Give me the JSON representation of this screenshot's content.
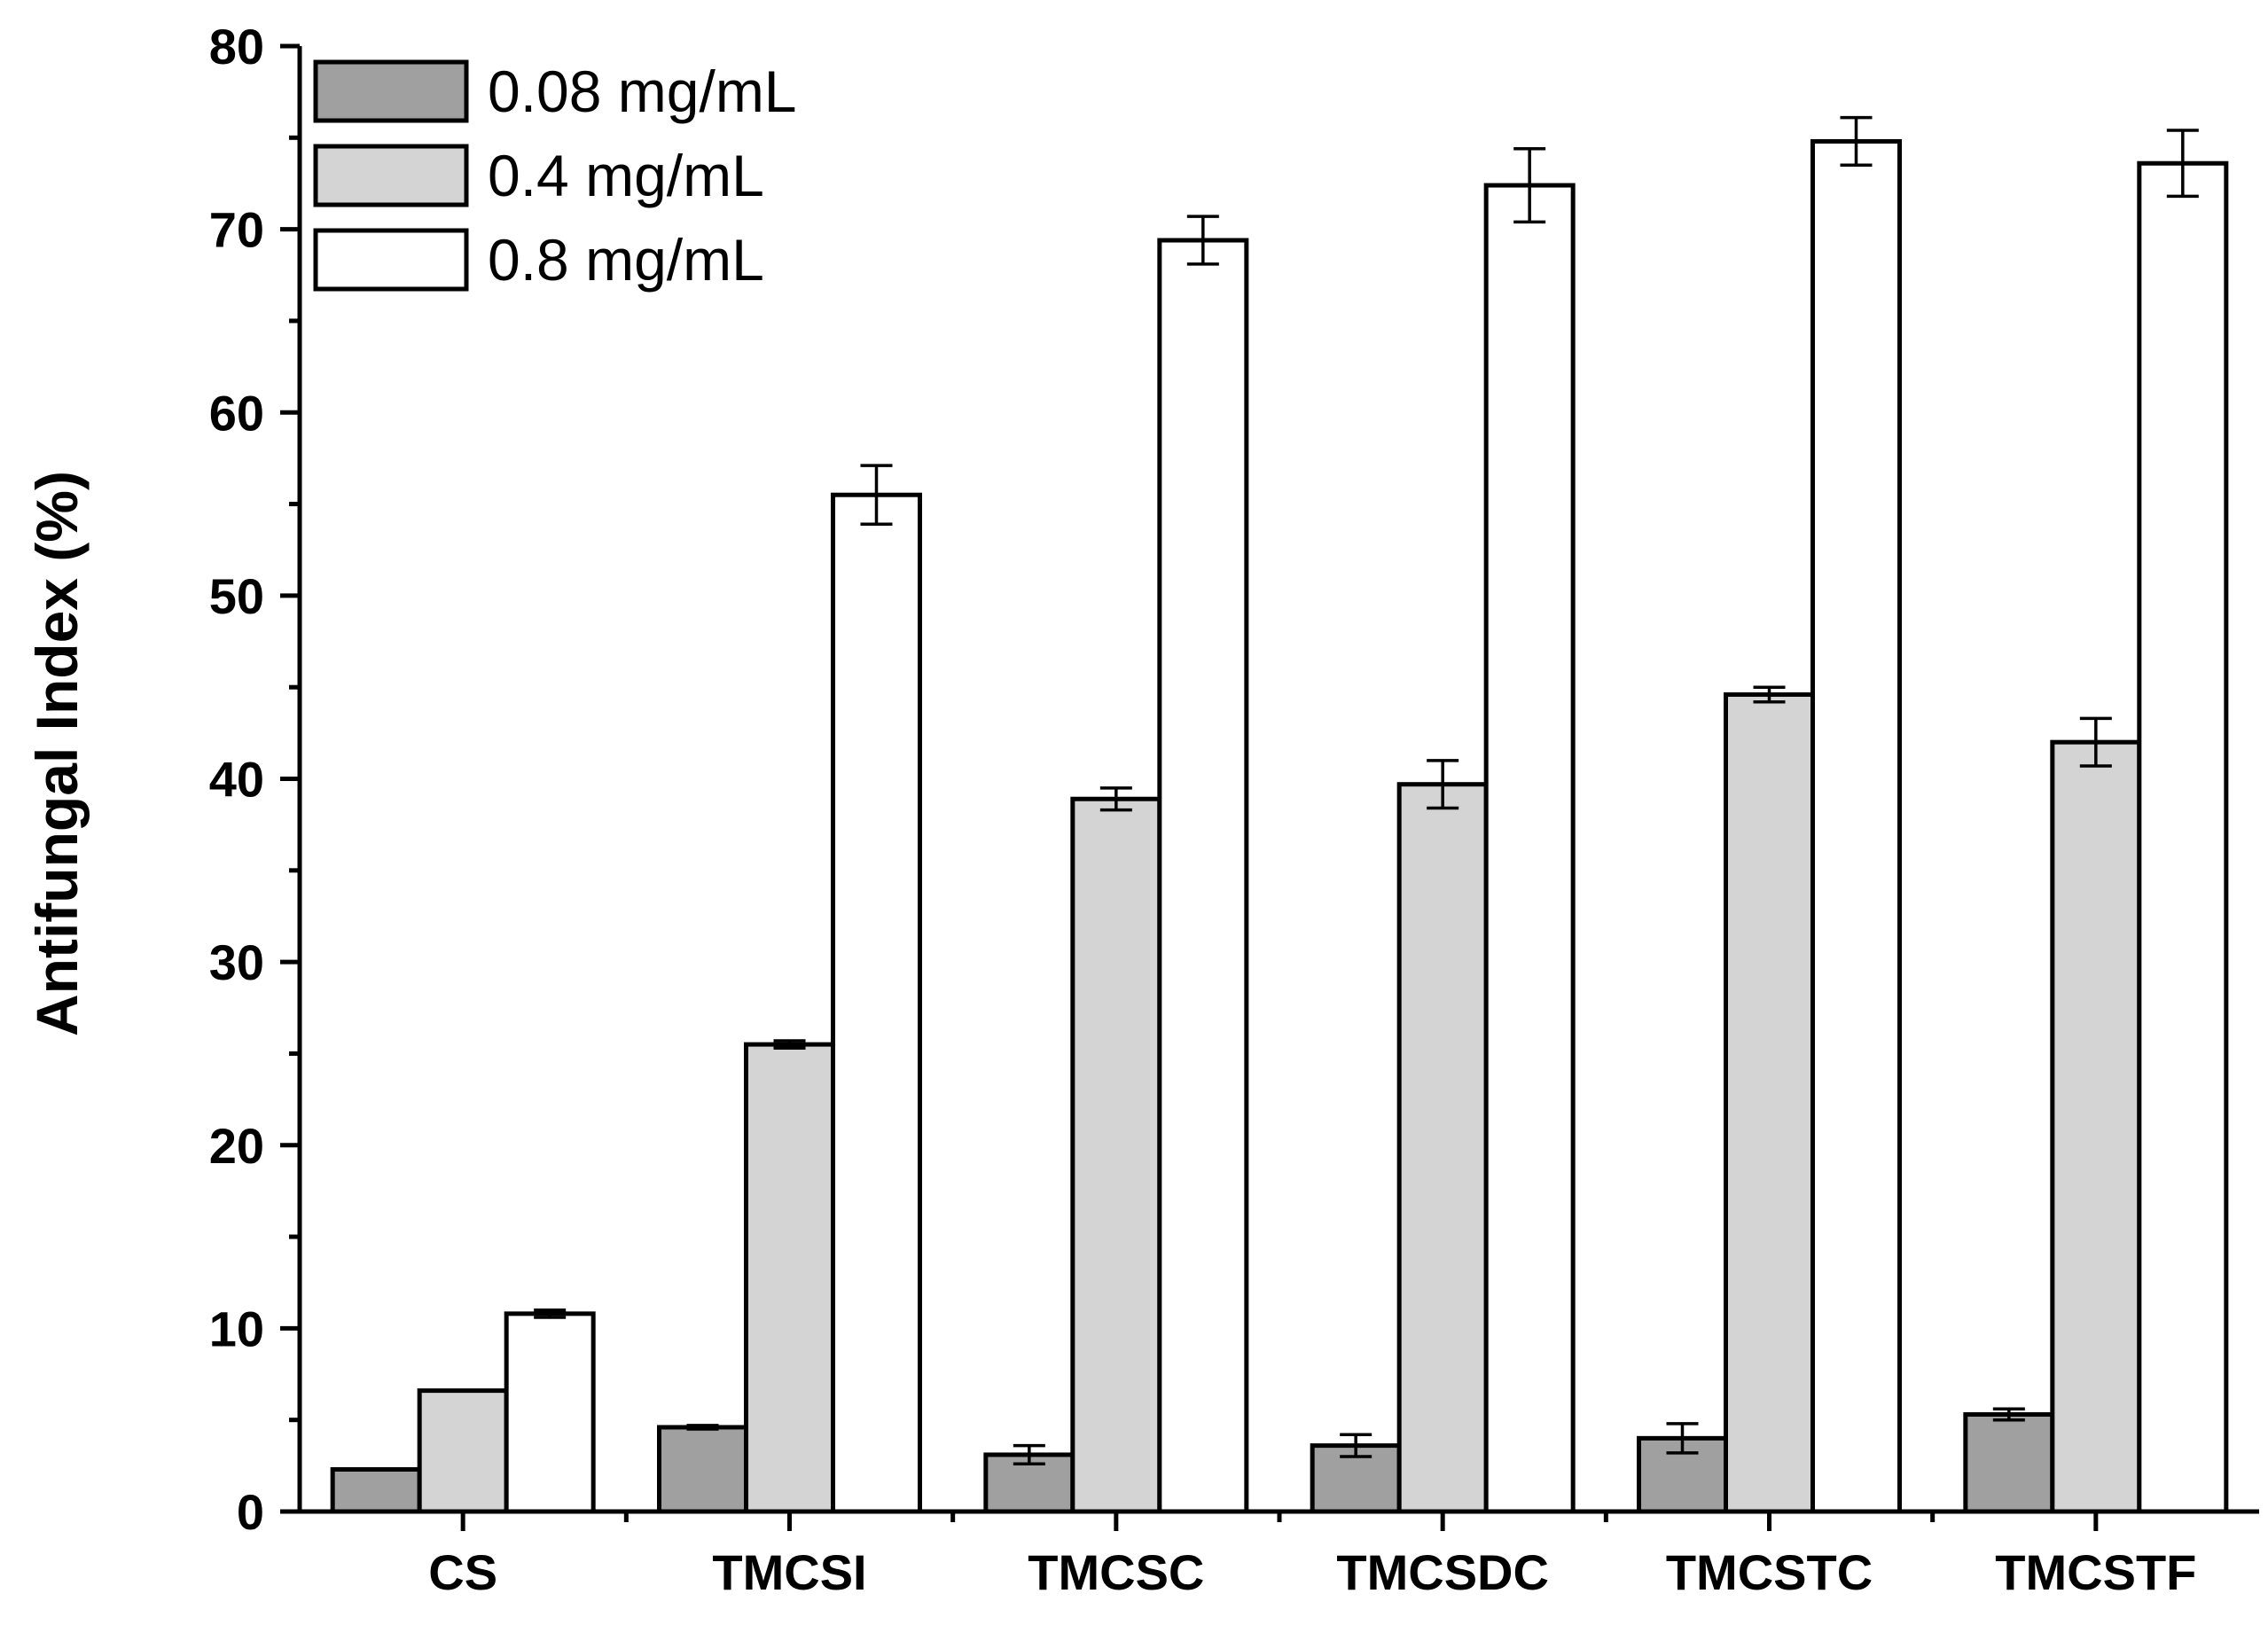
{
  "chart_data": {
    "type": "bar",
    "title": "",
    "xlabel": "",
    "ylabel": "Antifungal Index (%)",
    "ylim": [
      0,
      80
    ],
    "yticks": [
      0,
      10,
      20,
      30,
      40,
      50,
      60,
      70,
      80
    ],
    "grid": false,
    "legend_position": "top-left",
    "categories": [
      "CS",
      "TMCSI",
      "TMCSC",
      "TMCSDC",
      "TMCSTC",
      "TMCSTF"
    ],
    "series": [
      {
        "name": "0.08 mg/mL",
        "color": "#a0a0a0",
        "values": [
          2.3,
          4.6,
          3.1,
          3.6,
          4.0,
          5.3
        ],
        "errors": [
          0.0,
          0.1,
          0.5,
          0.6,
          0.8,
          0.3
        ]
      },
      {
        "name": "0.4 mg/mL",
        "color": "#d4d4d4",
        "values": [
          6.6,
          25.5,
          38.9,
          39.7,
          44.6,
          42.0
        ],
        "errors": [
          0.0,
          0.2,
          0.6,
          1.3,
          0.4,
          1.3
        ]
      },
      {
        "name": "0.8 mg/mL",
        "color": "#ffffff",
        "values": [
          10.8,
          55.5,
          69.4,
          72.4,
          74.8,
          73.6
        ],
        "errors": [
          0.2,
          1.6,
          1.3,
          2.0,
          1.3,
          1.8
        ]
      }
    ]
  }
}
